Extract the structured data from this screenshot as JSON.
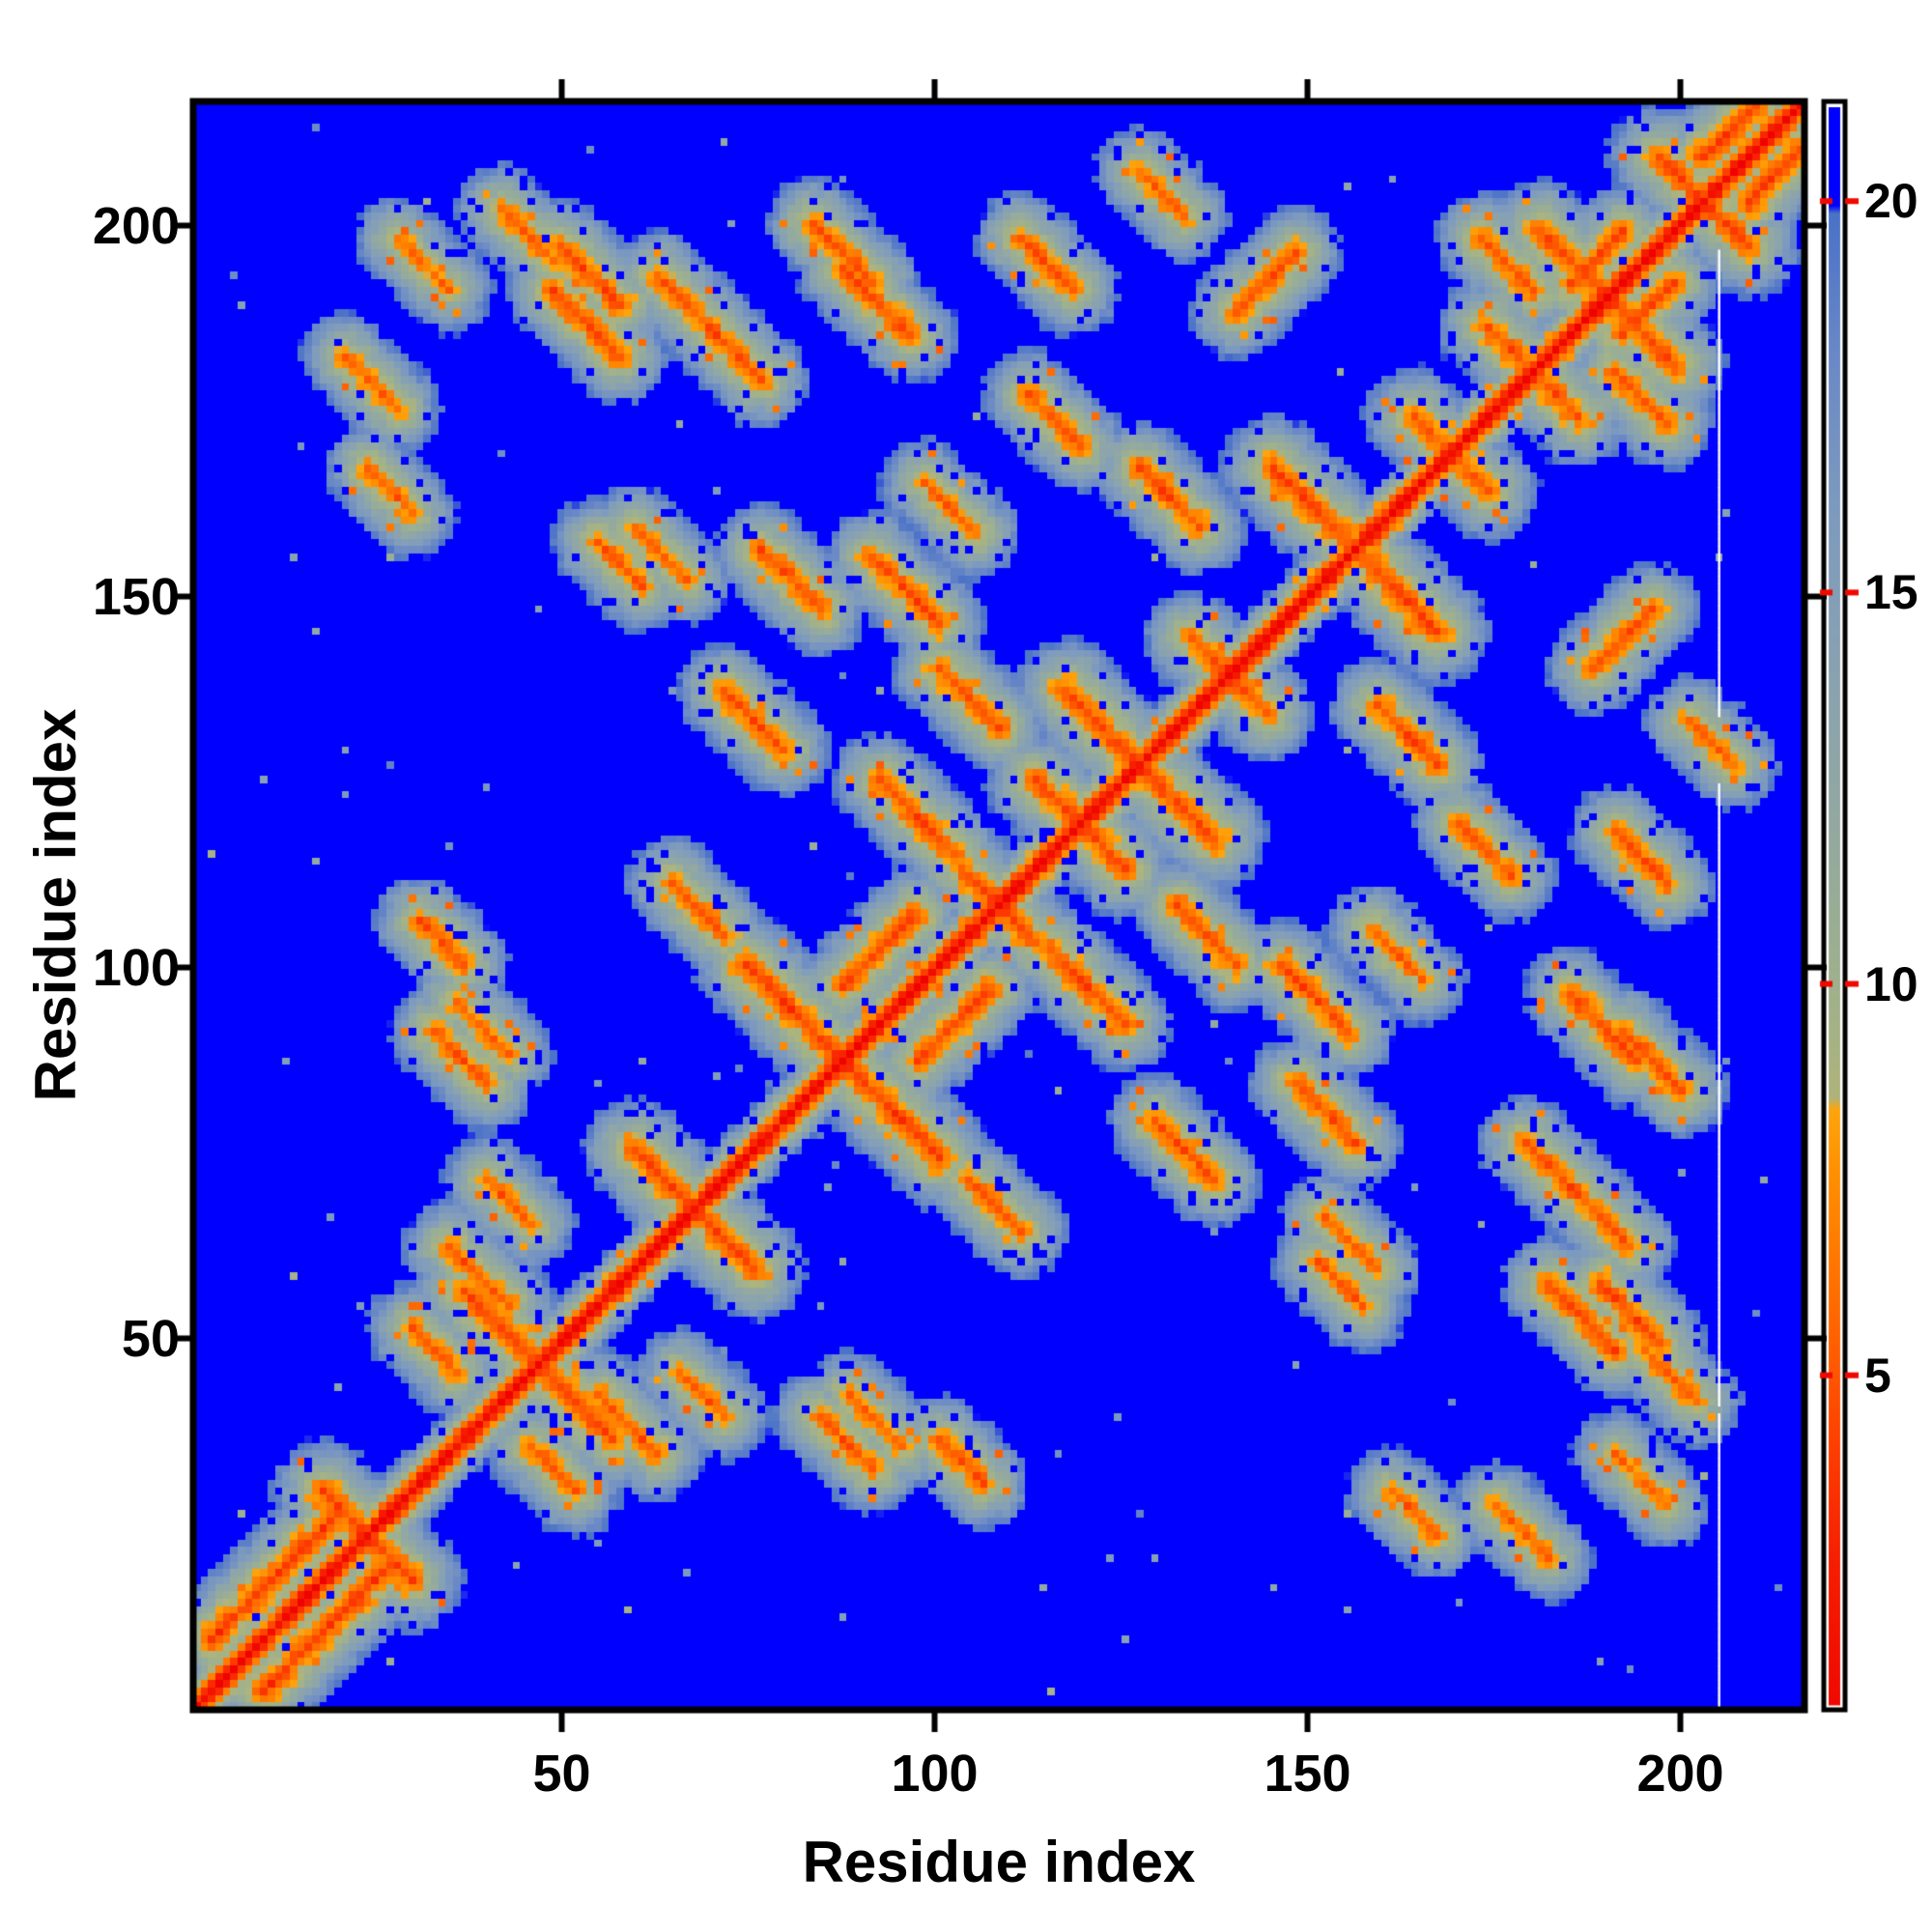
{
  "figure": {
    "background": "#ffffff",
    "frame_color": "#000000"
  },
  "chart_data": {
    "type": "heatmap",
    "title": "",
    "xlabel": "Residue index",
    "ylabel": "Residue index",
    "x_range": [
      1,
      217
    ],
    "y_range": [
      1,
      217
    ],
    "x_ticks": [
      50,
      100,
      150,
      200
    ],
    "y_ticks": [
      50,
      100,
      150,
      200
    ],
    "grid": false,
    "legend": "none",
    "colorbar": {
      "position": "right",
      "ticks": [
        5,
        10,
        15,
        20
      ],
      "vmin": 0.8,
      "vmax": 21.2
    },
    "background_color": "#0000ff",
    "diagonal_color": "#ee0000",
    "missing_column": {
      "index": 206,
      "color": "#ffffff"
    },
    "colormap": [
      [
        0.0,
        "#ee0000"
      ],
      [
        2.6,
        "#f61e00"
      ],
      [
        4.0,
        "#fd3d00"
      ],
      [
        5.2,
        "#ff5b00"
      ],
      [
        6.4,
        "#ff7600"
      ],
      [
        7.5,
        "#ff8e00"
      ],
      [
        8.4,
        "#ffa50c"
      ],
      [
        8.55,
        "#afb47b"
      ],
      [
        10.0,
        "#9fb18d"
      ],
      [
        12.0,
        "#93a9a0"
      ],
      [
        14.0,
        "#89a2b1"
      ],
      [
        16.0,
        "#7e9bbe"
      ],
      [
        18.0,
        "#6b89c6"
      ],
      [
        19.85,
        "#4a72c8"
      ],
      [
        19.95,
        "#0000ff"
      ],
      [
        21.5,
        "#0000ff"
      ]
    ],
    "matrix": {
      "n": 217,
      "description": "symmetric residue-residue distance map, red diagonal, blue = beyond cutoff",
      "diagonal_value": 0.4,
      "backbone_slope": 3.3,
      "background_value": 21.2,
      "noise_amp": 3.2,
      "seed": 7,
      "speckle": {
        "stray_p": 0.004,
        "hole_p": 0.055,
        "orange_p": 0.03
      },
      "hairpins": [
        [
          24,
          6,
          4.6
        ],
        [
          47,
          10,
          4.4
        ],
        [
          68,
          8,
          4.5
        ],
        [
          88,
          13,
          4.2
        ],
        [
          109,
          5,
          5.0
        ],
        [
          120,
          6,
          4.8
        ],
        [
          128,
          10,
          4.4
        ],
        [
          140,
          5,
          5.0
        ],
        [
          157,
          11,
          4.2
        ],
        [
          170,
          5,
          5.0
        ],
        [
          181,
          6,
          4.8
        ],
        [
          191,
          9,
          4.3
        ],
        [
          204,
          6,
          4.6
        ]
      ],
      "parallel": [
        [
          3,
          10,
          17,
          4.0
        ],
        [
          88,
          98,
          10,
          4.6
        ],
        [
          204,
          210,
          7,
          3.8
        ],
        [
          186,
          193,
          7,
          4.6
        ],
        [
          141,
          189,
          8,
          4.8
        ]
      ],
      "antiparallel": [
        [
          21,
          183,
          7,
          5.5
        ],
        [
          24,
          168,
          6,
          5.5
        ],
        [
          28,
          199,
          7,
          6.0
        ],
        [
          30,
          52,
          6,
          5.2
        ],
        [
          31,
          107,
          6,
          5.0
        ],
        [
          33,
          92,
          7,
          5.0
        ],
        [
          35,
          63,
          8,
          5.0
        ],
        [
          36,
          96,
          7,
          5.5
        ],
        [
          40,
          72,
          6,
          5.5
        ],
        [
          42,
          203,
          7,
          5.5
        ],
        [
          49,
          192,
          9,
          4.6
        ],
        [
          50,
          198,
          8,
          4.6
        ],
        [
          55,
          158,
          6,
          5.2
        ],
        [
          60,
          160,
          7,
          5.5
        ],
        [
          63,
          194,
          6,
          5.0
        ],
        [
          65,
          112,
          7,
          5.0
        ],
        [
          69,
          188,
          8,
          4.6
        ],
        [
          72,
          138,
          8,
          4.6
        ],
        [
          77,
          157,
          8,
          4.6
        ],
        [
          84,
          201,
          8,
          4.6
        ],
        [
          88,
          195,
          9,
          4.6
        ],
        [
          92,
          156,
          9,
          4.6
        ],
        [
          93,
          126,
          10,
          4.4
        ],
        [
          99,
          166,
          7,
          5.5
        ],
        [
          101,
          141,
          8,
          4.6
        ],
        [
          112,
          199,
          7,
          4.8
        ],
        [
          113,
          178,
          7,
          5.0
        ],
        [
          128,
          168,
          8,
          4.6
        ],
        [
          128,
          208,
          6,
          5.5
        ],
        [
          174,
          199,
          7,
          4.8
        ]
      ],
      "specks": [
        [
          3,
          116,
          9.5
        ],
        [
          59,
          14,
          9.5
        ]
      ]
    }
  }
}
